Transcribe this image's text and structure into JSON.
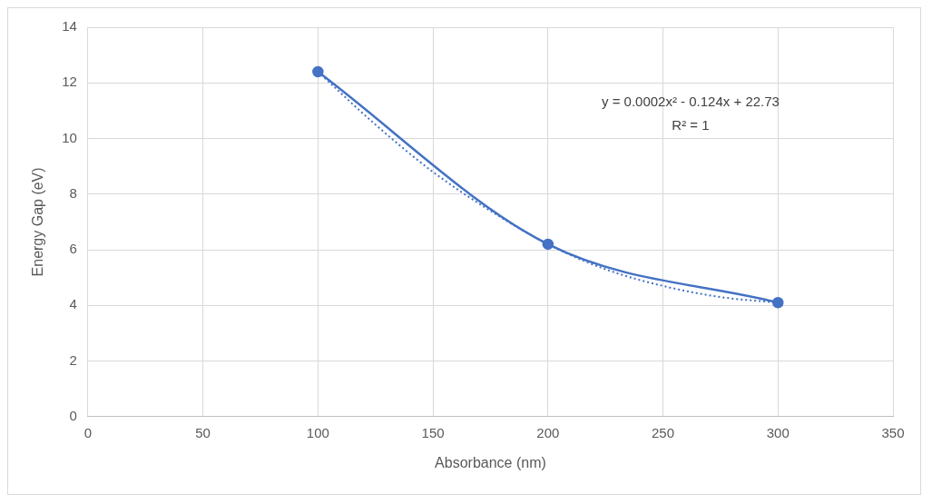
{
  "chart_data": {
    "type": "line",
    "xlabel": "Absorbance (nm)",
    "ylabel": "Energy Gap (eV)",
    "x": [
      100,
      200,
      300
    ],
    "series": [
      {
        "color": "#4472c4",
        "values": [
          12.4,
          6.2,
          4.1
        ],
        "marker": "circle",
        "line_style": "solid"
      },
      {
        "type": "line",
        "color": "#4472c4",
        "x": [
          100,
          125,
          150,
          175,
          200,
          225,
          250,
          275,
          300
        ],
        "values": [
          12.4,
          10.5,
          8.8,
          7.4,
          6.2,
          5.3,
          4.7,
          4.3,
          4.1
        ],
        "marker": "none",
        "line_style": "dotted"
      }
    ],
    "xlim": [
      0,
      350
    ],
    "xticks": [
      0,
      50,
      100,
      150,
      200,
      250,
      300,
      350
    ],
    "ylim": [
      0,
      14
    ],
    "yticks": [
      0,
      2,
      4,
      6,
      8,
      10,
      12,
      14
    ],
    "grid": true,
    "legend": false,
    "annotations": [
      "y = 0.0002x² - 0.124x + 22.73",
      "R² = 1"
    ]
  }
}
